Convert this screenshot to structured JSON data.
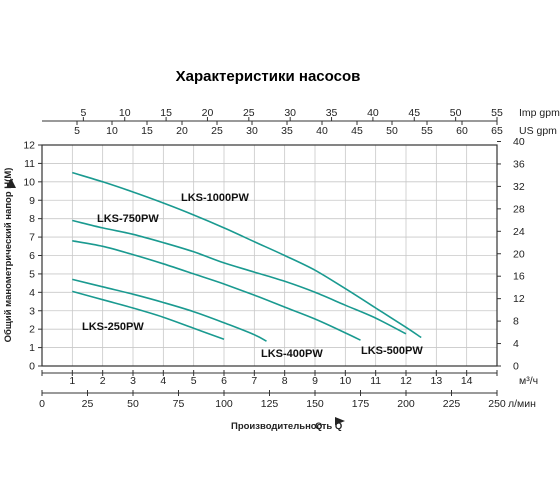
{
  "chart_data": {
    "type": "line",
    "title": "Характеристики насосов",
    "xlabel": "Производительность Q",
    "ylabel": "Общий манометрический напор H(M)",
    "x_unit": "м³/ч",
    "x_secondary_unit": "л/мин",
    "y_secondary_unit": "м",
    "top_axis_imp_unit": "Imp gpm",
    "top_axis_us_unit": "US gpm",
    "xlim": [
      0,
      15
    ],
    "ylim": [
      0,
      12
    ],
    "x_ticks": [
      "1",
      "2",
      "3",
      "4",
      "5",
      "6",
      "7",
      "8",
      "9",
      "10",
      "11",
      "12",
      "13",
      "14"
    ],
    "y_ticks": [
      "0",
      "1",
      "2",
      "3",
      "4",
      "5",
      "6",
      "7",
      "8",
      "9",
      "10",
      "11",
      "12"
    ],
    "y_right_ticks": [
      "0",
      "4",
      "8",
      "12",
      "16",
      "20",
      "24",
      "28",
      "32",
      "36",
      "40"
    ],
    "lmin_ticks": [
      "0",
      "25",
      "50",
      "75",
      "100",
      "125",
      "150",
      "175",
      "200",
      "225",
      "250"
    ],
    "imp_ticks": [
      "5",
      "10",
      "15",
      "20",
      "25",
      "30",
      "35",
      "40",
      "45",
      "50",
      "55"
    ],
    "us_ticks": [
      "5",
      "10",
      "15",
      "20",
      "25",
      "30",
      "35",
      "40",
      "45",
      "50",
      "55",
      "60",
      "65"
    ],
    "grid": true,
    "colors": {
      "curve": "#1a9a90",
      "title": "#2a8a9e",
      "grid": "#c8c8c8",
      "frame": "#333333"
    },
    "series": [
      {
        "name": "LKS-1000PW",
        "x": [
          1,
          2,
          3,
          4,
          5,
          6,
          7,
          8,
          9,
          10,
          11,
          12,
          12.5
        ],
        "y": [
          10.5,
          10.0,
          9.45,
          8.85,
          8.2,
          7.5,
          6.75,
          6.0,
          5.2,
          4.2,
          3.15,
          2.1,
          1.55
        ]
      },
      {
        "name": "LKS-750PW",
        "x": [
          1,
          2,
          3,
          4,
          5,
          6,
          7,
          8,
          9,
          10,
          11,
          12
        ],
        "y": [
          7.9,
          7.5,
          7.15,
          6.7,
          6.2,
          5.6,
          5.1,
          4.6,
          4.0,
          3.3,
          2.6,
          1.75
        ]
      },
      {
        "name": "LKS-500PW",
        "x": [
          1,
          2,
          3,
          4,
          5,
          6,
          7,
          8,
          9,
          10,
          10.5
        ],
        "y": [
          6.8,
          6.5,
          6.05,
          5.55,
          5.0,
          4.45,
          3.85,
          3.2,
          2.55,
          1.8,
          1.4
        ]
      },
      {
        "name": "LKS-400PW",
        "x": [
          1,
          2,
          3,
          4,
          5,
          6,
          7,
          7.4
        ],
        "y": [
          4.7,
          4.3,
          3.9,
          3.45,
          2.95,
          2.35,
          1.7,
          1.35
        ]
      },
      {
        "name": "LKS-250PW",
        "x": [
          1,
          2,
          3,
          4,
          5,
          6
        ],
        "y": [
          4.05,
          3.6,
          3.15,
          2.65,
          2.05,
          1.45
        ]
      }
    ]
  }
}
